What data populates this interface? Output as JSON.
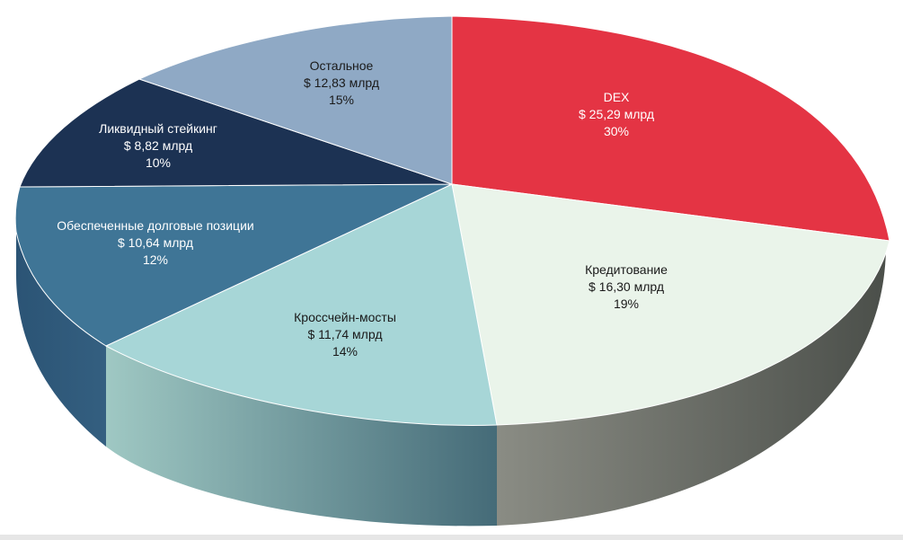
{
  "chart_data": {
    "type": "pie",
    "title": "",
    "slices": [
      {
        "name": "DEX",
        "value_text": "$ 25,29 млрд",
        "value": 25.29,
        "percent": 30,
        "percent_text": "30%",
        "color": "#e43444",
        "side_color": "#a8232e"
      },
      {
        "name": "Кредитование",
        "value_text": "$ 16,30 млрд",
        "value": 16.3,
        "percent": 19,
        "percent_text": "19%",
        "color": "#eaf4ea",
        "side_color": "#6a6d66"
      },
      {
        "name": "Кроссчейн-мосты",
        "value_text": "$ 11,74 млрд",
        "value": 11.74,
        "percent": 14,
        "percent_text": "14%",
        "color": "#a7d6d7",
        "side_color": "#6f9c9d"
      },
      {
        "name": "Обеспеченные долговые позиции",
        "value_text": "$ 10,64 млрд",
        "value": 10.64,
        "percent": 12,
        "percent_text": "12%",
        "color": "#3f7596",
        "side_color": "#2c5672"
      },
      {
        "name": "Ликвидный стейкинг",
        "value_text": "$ 8,82 млрд",
        "value": 8.82,
        "percent": 10,
        "percent_text": "10%",
        "color": "#1c3253",
        "side_color": "#13243d"
      },
      {
        "name": "Остальное",
        "value_text": "$ 12,83 млрд",
        "value": 12.83,
        "percent": 15,
        "percent_text": "15%",
        "color": "#8fa9c5",
        "side_color": "#647f9c"
      }
    ]
  }
}
